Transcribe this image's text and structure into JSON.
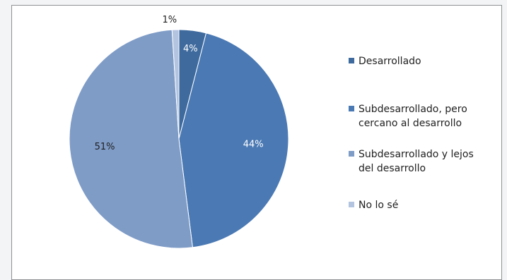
{
  "chart_data": {
    "type": "pie",
    "title": "",
    "categories": [
      "Desarrollado",
      "Subdesarrollado, pero cercano al desarrollo",
      "Subdesarrollado y lejos del desarrollo",
      "No lo sé"
    ],
    "legend_lines": [
      [
        "Desarrollado"
      ],
      [
        "Subdesarrollado, pero",
        "cercano al desarrollo"
      ],
      [
        "Subdesarrollado y lejos",
        "del desarrollo"
      ],
      [
        "No lo sé"
      ]
    ],
    "values": [
      4,
      44,
      51,
      1
    ],
    "data_labels": [
      "4%",
      "44%",
      "51%",
      "1%"
    ],
    "colors": [
      "#3e6a9e",
      "#4a79b4",
      "#7f9cc7",
      "#b3c4e0"
    ],
    "label_colors": [
      "#ffffff",
      "#ffffff",
      "#1f1f1f",
      "#1f1f1f"
    ],
    "legend_position": "right",
    "start_angle": "top",
    "direction": "clockwise"
  }
}
